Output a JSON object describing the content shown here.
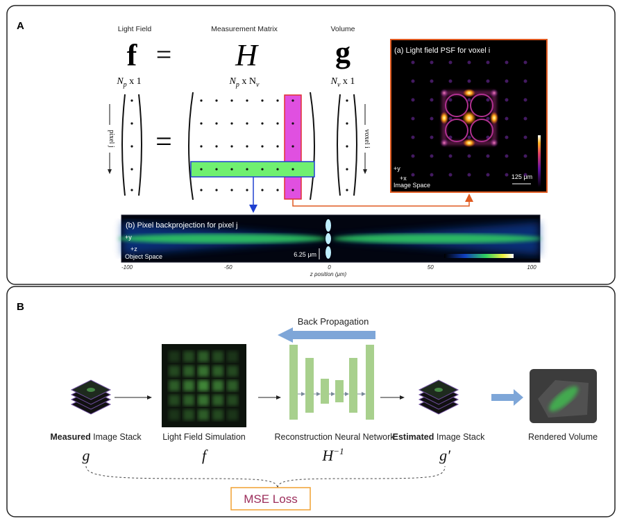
{
  "panel_a": {
    "label": "A",
    "headers": [
      "Light Field",
      "Measurement Matrix",
      "Volume"
    ],
    "symbols": [
      "f",
      "=",
      "H",
      "g"
    ],
    "dims": [
      [
        "N",
        "p",
        " x 1"
      ],
      [
        "N",
        "p",
        " x N",
        "v"
      ],
      [
        "N",
        "v",
        " x 1"
      ]
    ],
    "equals": "=",
    "pixel_label": "pixel j",
    "voxel_label": "voxel i",
    "psf": {
      "title": "(a) Light field PSF for voxel i",
      "axis_y": "+y",
      "axis_x": "+x",
      "space": "Image Space",
      "scale": "125 μm"
    },
    "backprojection": {
      "title": "(b) Pixel backprojection for pixel j",
      "axis_y": "+y",
      "axis_z": "+z",
      "space": "Object Space",
      "scale": "6.25 μm",
      "ticks": [
        "-100",
        "-50",
        "0",
        "50",
        "100"
      ],
      "axis_label": "z position (μm)"
    }
  },
  "panel_b": {
    "label": "B",
    "back_propagation": "Back Propagation",
    "steps": [
      {
        "bold": "Measured",
        "rest": " Image Stack",
        "symbol": "g"
      },
      {
        "rest": "Light Field Simulation",
        "symbol": "f"
      },
      {
        "rest": "Reconstruction Neural Network",
        "symbol": "H",
        "sup": "−1"
      },
      {
        "bold": "Estimated",
        "rest": " Image Stack",
        "symbol": "g′"
      },
      {
        "rest": "Rendered Volume"
      }
    ],
    "loss": "MSE Loss"
  }
}
